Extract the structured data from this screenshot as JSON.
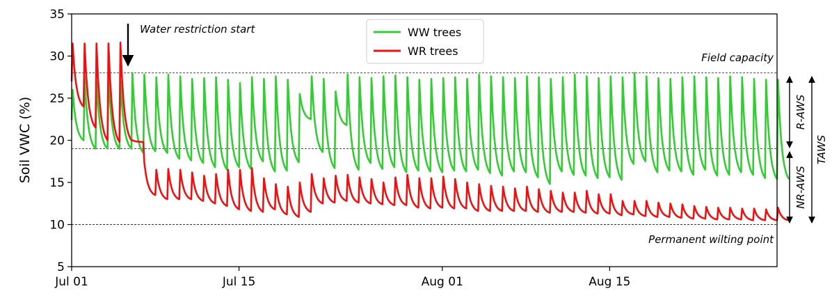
{
  "chart_data": {
    "type": "line",
    "title": "",
    "xlabel": "",
    "ylabel": "Soil VWC (%)",
    "ylim": [
      5,
      35
    ],
    "xlim": [
      "2023-07-01",
      "2023-08-29"
    ],
    "yticks": [
      5,
      10,
      15,
      20,
      25,
      30,
      35
    ],
    "xticks": [
      {
        "date": "2023-07-01",
        "label": "Jul 01"
      },
      {
        "date": "2023-07-15",
        "label": "Jul 15"
      },
      {
        "date": "2023-08-01",
        "label": "Aug 01"
      },
      {
        "date": "2023-08-15",
        "label": "Aug 15"
      }
    ],
    "legend_position": "top-center",
    "grid": false,
    "reference_lines": [
      {
        "value": 28,
        "label": "Field capacity"
      },
      {
        "value": 19,
        "label": ""
      },
      {
        "value": 10,
        "label": "Permanent wilting point"
      }
    ],
    "annotations": {
      "restriction": {
        "label": "Water restriction start",
        "date": "2023-07-05"
      },
      "r_aws": {
        "label": "R-AWS",
        "range": [
          19,
          28
        ]
      },
      "nr_aws": {
        "label": "NR-AWS",
        "range": [
          10,
          19
        ]
      },
      "taws": {
        "label": "TAWS",
        "range": [
          10,
          28
        ]
      }
    },
    "series": [
      {
        "name": "WW trees",
        "color": "#33cc33",
        "x": [
          "2023-07-01",
          "2023-07-02",
          "2023-07-03",
          "2023-07-04",
          "2023-07-05",
          "2023-07-06",
          "2023-07-07",
          "2023-07-08",
          "2023-07-09",
          "2023-07-10",
          "2023-07-11",
          "2023-07-12",
          "2023-07-13",
          "2023-07-14",
          "2023-07-15",
          "2023-07-16",
          "2023-07-17",
          "2023-07-18",
          "2023-07-19",
          "2023-07-20",
          "2023-07-21",
          "2023-07-22",
          "2023-07-23",
          "2023-07-24",
          "2023-07-25",
          "2023-07-26",
          "2023-07-27",
          "2023-07-28",
          "2023-07-29",
          "2023-07-30",
          "2023-07-31",
          "2023-08-01",
          "2023-08-02",
          "2023-08-03",
          "2023-08-04",
          "2023-08-05",
          "2023-08-06",
          "2023-08-07",
          "2023-08-08",
          "2023-08-09",
          "2023-08-10",
          "2023-08-11",
          "2023-08-12",
          "2023-08-13",
          "2023-08-14",
          "2023-08-15",
          "2023-08-16",
          "2023-08-17",
          "2023-08-18",
          "2023-08-19",
          "2023-08-20",
          "2023-08-21",
          "2023-08-22",
          "2023-08-23",
          "2023-08-24",
          "2023-08-25",
          "2023-08-26",
          "2023-08-27",
          "2023-08-28",
          "2023-08-29"
        ],
        "peak": [
          26,
          27.5,
          27,
          27.5,
          27,
          28,
          27.8,
          27.5,
          27.8,
          27.6,
          27.3,
          27.4,
          27.5,
          27.2,
          26.8,
          27.5,
          27.3,
          27.6,
          27.2,
          25.5,
          27.6,
          27.3,
          25.8,
          27.8,
          27.5,
          27.4,
          27.6,
          27.7,
          27.5,
          27.2,
          27.3,
          27.4,
          27.5,
          27.3,
          27.8,
          27.6,
          27.5,
          27.4,
          27.6,
          27.5,
          27.3,
          27.5,
          27.8,
          27.6,
          27.4,
          27.6,
          27.5,
          28,
          27.6,
          27.4,
          27.3,
          27.5,
          27.6,
          27.5,
          27.4,
          27.6,
          27.5,
          27.3,
          27.2,
          27.2
        ],
        "trough": [
          20,
          19,
          19,
          19,
          19,
          18.5,
          18.7,
          18.5,
          17.8,
          17.6,
          17.3,
          16.8,
          16.5,
          16.8,
          16.6,
          17.5,
          16.3,
          16.4,
          17.4,
          22.5,
          18.6,
          16.7,
          21.8,
          16.5,
          17.3,
          16.6,
          16.8,
          16.2,
          16.4,
          16.3,
          16.2,
          16.4,
          16.3,
          16.5,
          16.1,
          15.8,
          16.3,
          16.2,
          15.6,
          14.8,
          16.3,
          15.9,
          15.8,
          15.5,
          15.6,
          15.3,
          17.2,
          17.5,
          16.2,
          16.4,
          16.3,
          15.9,
          16.5,
          15.8,
          15.9,
          16.2,
          15.9,
          15.5,
          15.4,
          15.4
        ]
      },
      {
        "name": "WR trees",
        "color": "#ee1111",
        "x": [
          "2023-07-01",
          "2023-07-02",
          "2023-07-03",
          "2023-07-04",
          "2023-07-05",
          "2023-07-06",
          "2023-07-07",
          "2023-07-08",
          "2023-07-09",
          "2023-07-10",
          "2023-07-11",
          "2023-07-12",
          "2023-07-13",
          "2023-07-14",
          "2023-07-15",
          "2023-07-16",
          "2023-07-17",
          "2023-07-18",
          "2023-07-19",
          "2023-07-20",
          "2023-07-21",
          "2023-07-22",
          "2023-07-23",
          "2023-07-24",
          "2023-07-25",
          "2023-07-26",
          "2023-07-27",
          "2023-07-28",
          "2023-07-29",
          "2023-07-30",
          "2023-07-31",
          "2023-08-01",
          "2023-08-02",
          "2023-08-03",
          "2023-08-04",
          "2023-08-05",
          "2023-08-06",
          "2023-08-07",
          "2023-08-08",
          "2023-08-09",
          "2023-08-10",
          "2023-08-11",
          "2023-08-12",
          "2023-08-13",
          "2023-08-14",
          "2023-08-15",
          "2023-08-16",
          "2023-08-17",
          "2023-08-18",
          "2023-08-19",
          "2023-08-20",
          "2023-08-21",
          "2023-08-22",
          "2023-08-23",
          "2023-08-24",
          "2023-08-25",
          "2023-08-26",
          "2023-08-27",
          "2023-08-28",
          "2023-08-29"
        ],
        "peak": [
          31.5,
          31.5,
          31.5,
          31.5,
          31.6,
          20,
          17.3,
          16.5,
          16.6,
          16.5,
          16.2,
          15.8,
          16.0,
          16.5,
          16.5,
          16.7,
          15.5,
          14.8,
          14.5,
          15.0,
          16.0,
          15.5,
          15.8,
          15.9,
          15.6,
          15.4,
          15.0,
          15.6,
          15.9,
          15.5,
          15.5,
          15.7,
          15.4,
          15.0,
          14.8,
          14.6,
          14.5,
          14.3,
          14.5,
          14.2,
          14.0,
          13.8,
          13.8,
          14.0,
          13.6,
          13.6,
          12.8,
          12.8,
          12.8,
          12.6,
          12.5,
          12.4,
          12.2,
          12.1,
          12.0,
          12.0,
          11.9,
          11.9,
          11.8,
          12.0
        ],
        "trough": [
          24,
          21.5,
          20,
          19.8,
          20,
          19.8,
          13.5,
          13,
          13,
          13,
          12.8,
          12.5,
          12.2,
          11.8,
          11.6,
          11.5,
          11.8,
          11.2,
          10.9,
          11.5,
          12.5,
          12.6,
          12.8,
          12.6,
          12.5,
          12.4,
          12.3,
          12.3,
          12.0,
          11.9,
          12.0,
          11.9,
          11.9,
          11.6,
          11.6,
          11.6,
          11.6,
          11.6,
          11.5,
          11.4,
          11.5,
          11.5,
          11.4,
          11.3,
          11.3,
          11.1,
          11.2,
          11.0,
          10.9,
          10.9,
          10.8,
          10.7,
          10.7,
          10.6,
          10.6,
          10.6,
          10.5,
          10.5,
          10.5,
          10.5
        ]
      }
    ]
  }
}
